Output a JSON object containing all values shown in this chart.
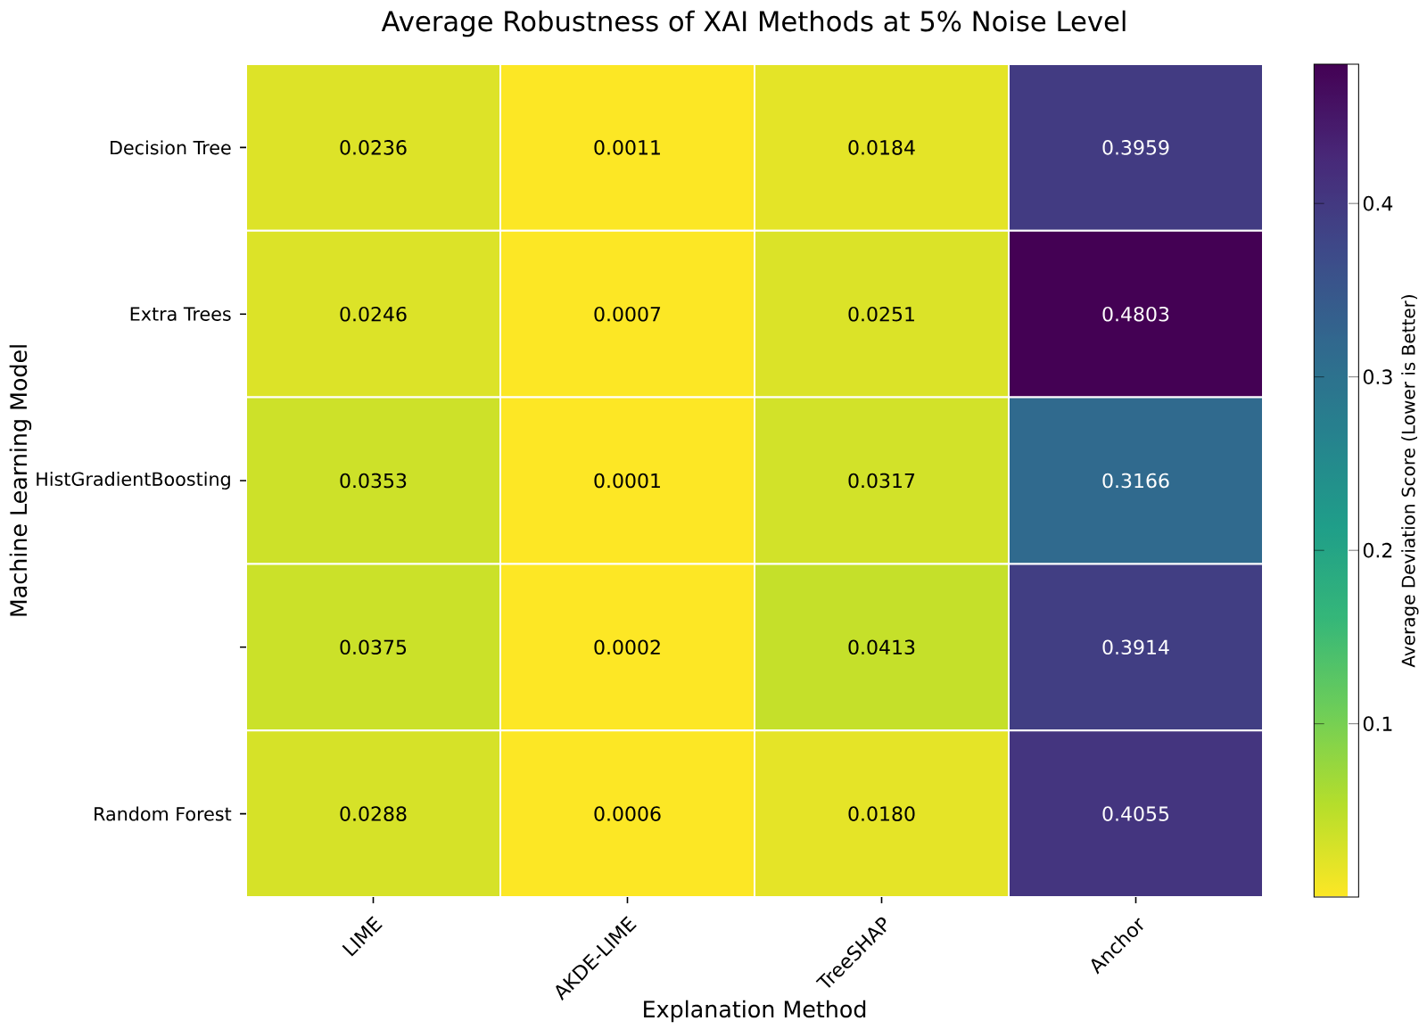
{
  "chart_data": {
    "type": "heatmap",
    "title": "Average Robustness of XAI Methods at 5% Noise Level",
    "xlabel": "Explanation Method",
    "ylabel": "Machine Learning Model",
    "clabel": "Average Deviation Score (Lower is Better)",
    "categories": [
      "LIME",
      "AKDE-LIME",
      "TreeSHAP",
      "Anchor"
    ],
    "y_categories": [
      "Decision Tree",
      "Extra Trees",
      "HistGradientBoosting",
      null,
      "Random Forest"
    ],
    "cells": [
      [
        0.0236,
        0.0011,
        0.0184,
        0.3959
      ],
      [
        0.0246,
        0.0007,
        0.0251,
        0.4803
      ],
      [
        0.0353,
        0.0001,
        0.0317,
        0.3166
      ],
      [
        0.0375,
        0.0002,
        0.0413,
        0.3914
      ],
      [
        0.0288,
        0.0006,
        0.018,
        0.4055
      ]
    ],
    "cell_labels": [
      [
        "0.0236",
        "0.0011",
        "0.0184",
        "0.3959"
      ],
      [
        "0.0246",
        "0.0007",
        "0.0251",
        "0.4803"
      ],
      [
        "0.0353",
        "0.0001",
        "0.0317",
        "0.3166"
      ],
      [
        "0.0375",
        "0.0002",
        "0.0413",
        "0.3914"
      ],
      [
        "0.0288",
        "0.0006",
        "0.0180",
        "0.4055"
      ]
    ],
    "clim": [
      0.0001,
      0.4803
    ],
    "cticks": [
      0.1,
      0.2,
      0.3,
      0.4
    ]
  }
}
